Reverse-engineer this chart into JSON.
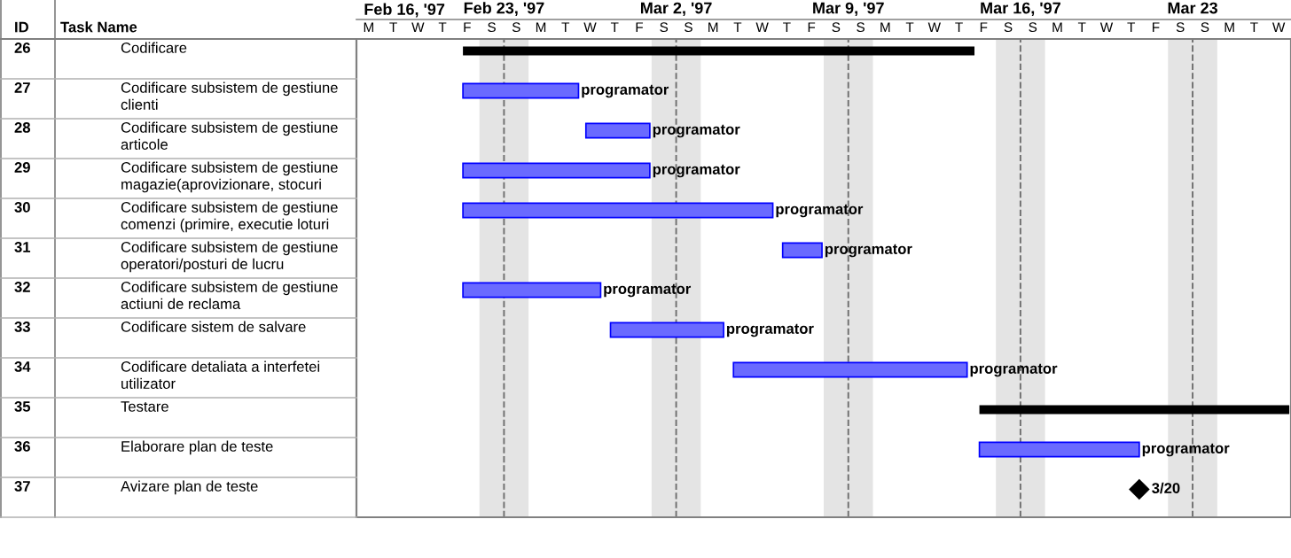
{
  "chart_data": {
    "type": "bar",
    "orientation": "horizontal",
    "ylabel": "Task Name",
    "categories": [
      "Codificare",
      "Codificare subsistem de gestiune\nclienti",
      "Codificare subsistem de gestiune\narticole",
      "Codificare subsistem de gestiune\nmagazie(aprovizionare, stocuri",
      "Codificare subsistem de gestiune\ncomenzi (primire, executie loturi",
      "Codificare subsistem de gestiune\noperatori/posturi de lucru",
      "Codificare subsistem de gestiune\nactiuni de reclama",
      "Codificare sistem de salvare",
      "Codificare detaliata a interfetei\nutilizator",
      "Testare",
      "Elaborare plan de teste",
      "Avizare plan de teste"
    ],
    "series": [
      {
        "color": "#000000",
        "base": [
          9913.33,
          null,
          null,
          null,
          null,
          null,
          null,
          null,
          null,
          9934.33,
          null,
          null
        ],
        "values": [
          20.8,
          null,
          null,
          null,
          null,
          null,
          null,
          null,
          null,
          12.6,
          null,
          null
        ]
      },
      {
        "color": "#6a6aff",
        "base": [
          null,
          9913.33,
          9918.33,
          9913.33,
          9913.33,
          9926.33,
          9913.33,
          9919.33,
          9924.33,
          null,
          9934.33,
          null
        ],
        "values": [
          null,
          4.7,
          2.6,
          7.6,
          12.6,
          1.6,
          5.6,
          4.6,
          9.5,
          null,
          6.5,
          null
        ],
        "value_labels": [
          null,
          "programator",
          "programator",
          "programator",
          "programator",
          "programator",
          "programator",
          "programator",
          "programator",
          null,
          "programator",
          null
        ]
      },
      {
        "type": "scatter",
        "marker": "diamond",
        "color": "#000000",
        "values": [
          null,
          null,
          null,
          null,
          null,
          null,
          null,
          null,
          null,
          null,
          null,
          9940.83
        ],
        "value_labels": [
          null,
          null,
          null,
          null,
          null,
          null,
          null,
          null,
          null,
          null,
          null,
          "3/20"
        ]
      }
    ],
    "xlim": [
      "1997-02-17",
      "1997-03-27"
    ],
    "xticks": [
      {
        "value": "1997-02-23",
        "label": "Feb 23, '97"
      },
      {
        "value": "1997-03-02",
        "label": "Mar 2, '97"
      },
      {
        "value": "1997-03-09",
        "label": "Mar 9, '97"
      },
      {
        "value": "1997-03-16",
        "label": "Mar 16, '97"
      },
      {
        "value": "1997-03-23",
        "label": "Mar 23"
      }
    ],
    "bands": [
      {
        "axis": "x",
        "from": "1997-02-22",
        "to": "1997-02-24",
        "color": "#e4e4e4"
      },
      {
        "axis": "x",
        "from": "1997-03-01",
        "to": "1997-03-03",
        "color": "#e4e4e4"
      },
      {
        "axis": "x",
        "from": "1997-03-08",
        "to": "1997-03-10",
        "color": "#e4e4e4"
      },
      {
        "axis": "x",
        "from": "1997-03-15",
        "to": "1997-03-17",
        "color": "#e4e4e4"
      },
      {
        "axis": "x",
        "from": "1997-03-22",
        "to": "1997-03-24",
        "color": "#e4e4e4"
      }
    ],
    "ref_lines": [
      {
        "axis": "x",
        "value": "1997-02-23",
        "color": "#707070",
        "line_style": "dashed"
      },
      {
        "axis": "x",
        "value": "1997-03-02",
        "color": "#707070",
        "line_style": "dashed"
      },
      {
        "axis": "x",
        "value": "1997-03-09",
        "color": "#707070",
        "line_style": "dashed"
      },
      {
        "axis": "x",
        "value": "1997-03-16",
        "color": "#707070",
        "line_style": "dashed"
      },
      {
        "axis": "x",
        "value": "1997-03-23",
        "color": "#707070",
        "line_style": "dashed"
      }
    ],
    "annotations": [
      "ID",
      "26",
      "27",
      "28",
      "29",
      "30",
      "31",
      "32",
      "33",
      "34",
      "35",
      "36",
      "37",
      "Feb 16, '97",
      "M",
      "T",
      "W",
      "T",
      "F",
      "S",
      "S",
      "M",
      "T",
      "W",
      "T",
      "F",
      "S",
      "S",
      "M",
      "T",
      "W",
      "T",
      "F",
      "S",
      "S",
      "M",
      "T",
      "W",
      "T",
      "F",
      "S",
      "S",
      "M",
      "T",
      "W",
      "T",
      "F",
      "S",
      "S",
      "M",
      "T",
      "W"
    ],
    "grid": false
  }
}
